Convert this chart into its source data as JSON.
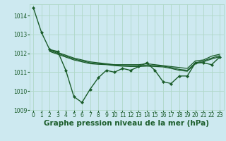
{
  "background_color": "#cde9f0",
  "grid_color": "#b0d8c8",
  "line_color": "#1a5c2a",
  "xlabel": "Graphe pression niveau de la mer (hPa)",
  "xlabel_fontsize": 7.5,
  "ylim": [
    1009.0,
    1014.6
  ],
  "xlim": [
    -0.5,
    23.5
  ],
  "yticks": [
    1009,
    1010,
    1011,
    1012,
    1013,
    1014
  ],
  "xticks": [
    0,
    1,
    2,
    3,
    4,
    5,
    6,
    7,
    8,
    9,
    10,
    11,
    12,
    13,
    14,
    15,
    16,
    17,
    18,
    19,
    20,
    21,
    22,
    23
  ],
  "series": [
    {
      "x": [
        0,
        1,
        2,
        3,
        4,
        5,
        6,
        7,
        8,
        9,
        10,
        11,
        12,
        13,
        14,
        15,
        16,
        17,
        18,
        19,
        20,
        21,
        22,
        23
      ],
      "y": [
        1014.4,
        1013.1,
        1012.2,
        1012.1,
        1011.1,
        1009.7,
        1009.4,
        1010.1,
        1010.7,
        1011.1,
        1011.0,
        1011.2,
        1011.1,
        1011.3,
        1011.5,
        1011.1,
        1010.5,
        1010.4,
        1010.8,
        1010.8,
        1011.5,
        1011.5,
        1011.4,
        1011.8
      ],
      "marker": "D",
      "markersize": 2.0,
      "linewidth": 1.0,
      "zorder": 3
    },
    {
      "x": [
        2,
        3,
        4,
        5,
        6,
        7,
        8,
        9,
        10,
        11,
        12,
        13,
        14,
        15,
        16,
        17,
        18,
        19,
        20,
        21,
        22,
        23
      ],
      "y": [
        1012.2,
        1012.05,
        1011.9,
        1011.75,
        1011.65,
        1011.55,
        1011.5,
        1011.45,
        1011.4,
        1011.4,
        1011.4,
        1011.4,
        1011.45,
        1011.4,
        1011.35,
        1011.3,
        1011.25,
        1011.2,
        1011.6,
        1011.65,
        1011.85,
        1011.95
      ],
      "marker": null,
      "markersize": 0,
      "linewidth": 0.9,
      "zorder": 2
    },
    {
      "x": [
        2,
        3,
        4,
        5,
        6,
        7,
        8,
        9,
        10,
        11,
        12,
        13,
        14,
        15,
        16,
        17,
        18,
        19,
        20,
        21,
        22,
        23
      ],
      "y": [
        1012.15,
        1012.0,
        1011.85,
        1011.7,
        1011.6,
        1011.5,
        1011.45,
        1011.43,
        1011.38,
        1011.35,
        1011.35,
        1011.35,
        1011.38,
        1011.35,
        1011.32,
        1011.25,
        1011.15,
        1011.1,
        1011.5,
        1011.6,
        1011.75,
        1011.88
      ],
      "marker": null,
      "markersize": 0,
      "linewidth": 0.9,
      "zorder": 2
    },
    {
      "x": [
        2,
        3,
        4,
        5,
        6,
        7,
        8,
        9,
        10,
        11,
        12,
        13,
        14,
        15,
        16,
        17,
        18,
        19,
        20,
        21,
        22,
        23
      ],
      "y": [
        1012.1,
        1011.95,
        1011.8,
        1011.65,
        1011.55,
        1011.45,
        1011.42,
        1011.4,
        1011.35,
        1011.32,
        1011.3,
        1011.3,
        1011.32,
        1011.3,
        1011.28,
        1011.2,
        1011.1,
        1011.05,
        1011.45,
        1011.55,
        1011.7,
        1011.82
      ],
      "marker": null,
      "markersize": 0,
      "linewidth": 0.9,
      "zorder": 2
    }
  ]
}
